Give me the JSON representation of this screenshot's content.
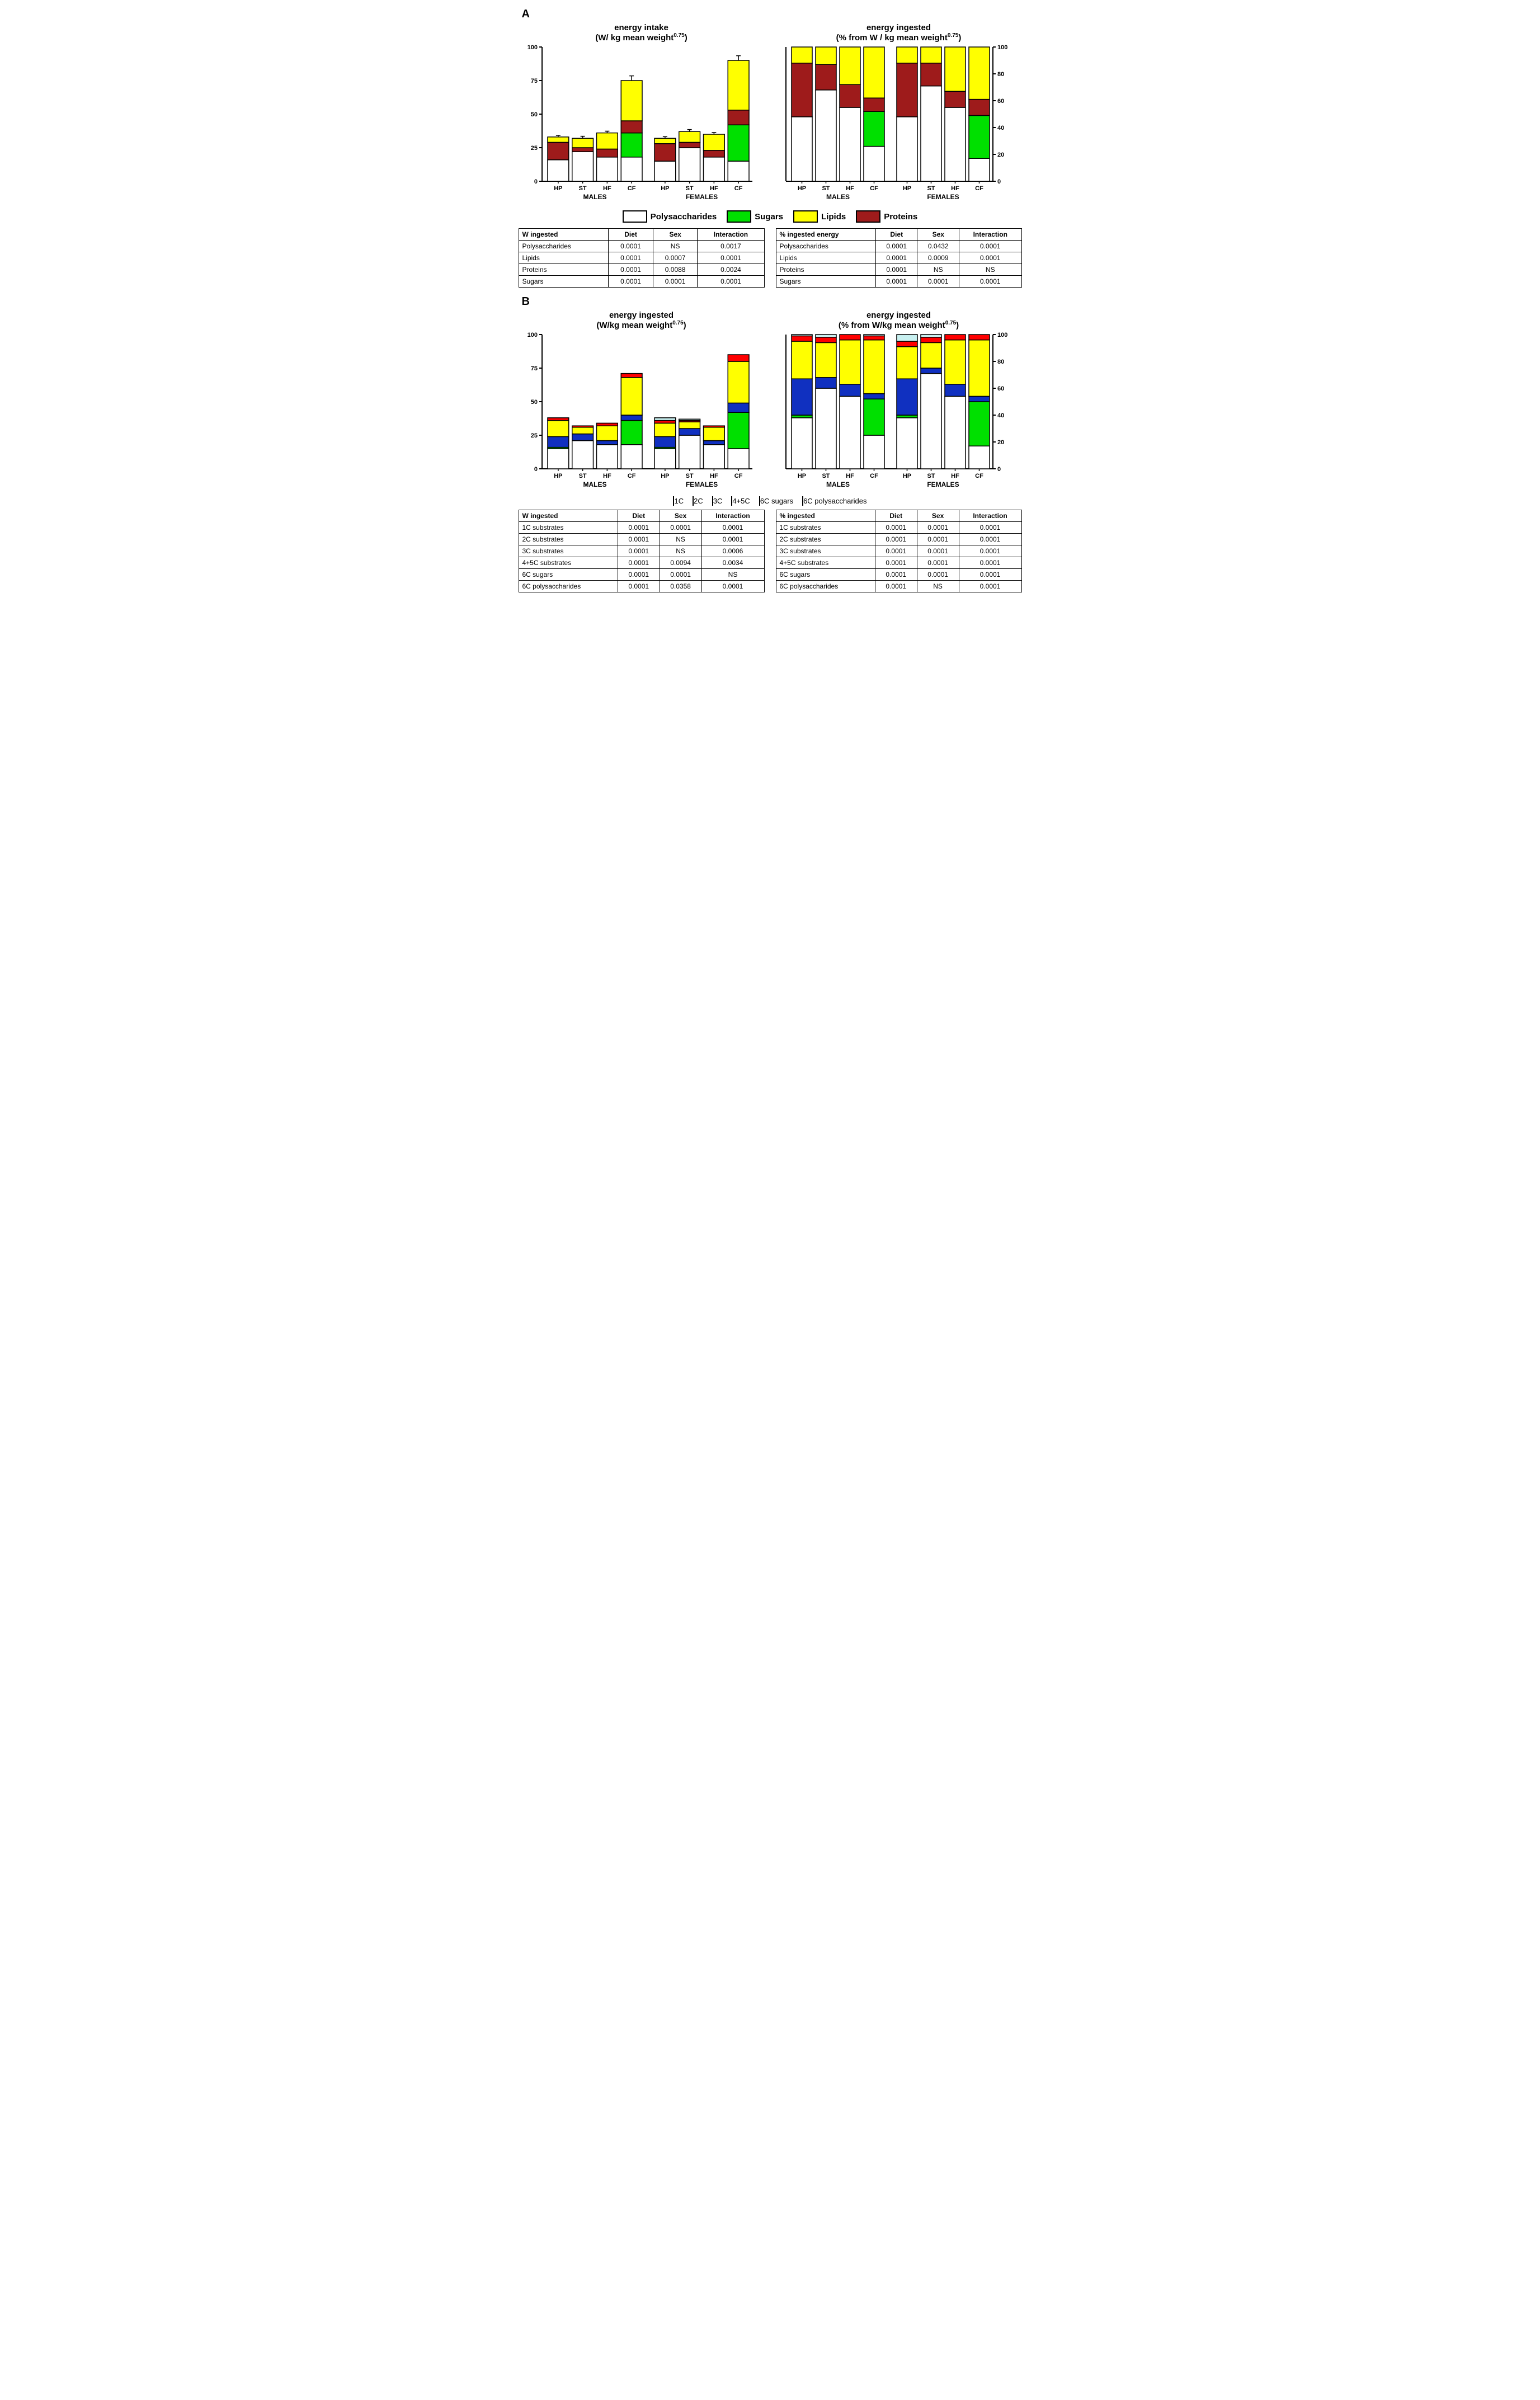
{
  "global": {
    "background_color": "#ffffff",
    "axis_color": "#000000",
    "font_family": "Arial"
  },
  "colors": {
    "polysaccharides": "#ffffff",
    "sugars": "#00e000",
    "lipids": "#ffff00",
    "proteins": "#9e1b1b",
    "c1": "#c8f0f0",
    "c2": "#ffff00",
    "c3": "#ff0000",
    "c45": "#1030c0",
    "c6sugars": "#00e000",
    "c6poly": "#ffffff"
  },
  "panelA": {
    "label": "A",
    "left": {
      "title_line1": "energy intake",
      "title_line2_prefix": "(W/ kg mean weight",
      "title_sup": "0.75",
      "title_line2_suffix": ")",
      "ylim": [
        0,
        100
      ],
      "yticks": [
        0,
        25,
        50,
        75,
        100
      ],
      "groups": [
        "MALES",
        "FEMALES"
      ],
      "categories": [
        "HP",
        "ST",
        "HF",
        "CF"
      ],
      "series_order": [
        "polysaccharides",
        "proteins",
        "lipids",
        "sugars_top"
      ],
      "bars": {
        "MALES": {
          "HP": {
            "poly": 16,
            "sugars": 0,
            "proteins": 13,
            "lipids": 4,
            "err": 1.2
          },
          "ST": {
            "poly": 22,
            "sugars": 0,
            "proteins": 3,
            "lipids": 7,
            "err": 1.5
          },
          "HF": {
            "poly": 18,
            "sugars": 0,
            "proteins": 6,
            "lipids": 12,
            "err": 1.3
          },
          "CF": {
            "poly": 18,
            "sugars": 18,
            "proteins": 9,
            "lipids": 30,
            "err": 3.5
          }
        },
        "FEMALES": {
          "HP": {
            "poly": 15,
            "sugars": 0,
            "proteins": 13,
            "lipids": 4,
            "err": 1.2
          },
          "ST": {
            "poly": 25,
            "sugars": 0,
            "proteins": 4,
            "lipids": 8,
            "err": 1.5
          },
          "HF": {
            "poly": 18,
            "sugars": 0,
            "proteins": 5,
            "lipids": 12,
            "err": 1.3
          },
          "CF": {
            "poly": 15,
            "sugars": 27,
            "proteins": 11,
            "lipids": 37,
            "err": 3.5
          }
        }
      }
    },
    "right": {
      "title_line1": "energy ingested",
      "title_line2_prefix": "(% from W / kg mean weight",
      "title_sup": "0.75",
      "title_line2_suffix": ")",
      "ylim": [
        0,
        100
      ],
      "yticks": [
        0,
        20,
        40,
        60,
        80,
        100
      ],
      "bars": {
        "MALES": {
          "HP": {
            "poly": 48,
            "sugars": 0,
            "proteins": 40,
            "lipids": 12
          },
          "ST": {
            "poly": 68,
            "sugars": 0,
            "proteins": 19,
            "lipids": 13
          },
          "HF": {
            "poly": 55,
            "sugars": 0,
            "proteins": 17,
            "lipids": 28
          },
          "CF": {
            "poly": 26,
            "sugars": 26,
            "proteins": 10,
            "lipids": 38
          }
        },
        "FEMALES": {
          "HP": {
            "poly": 48,
            "sugars": 0,
            "proteins": 40,
            "lipids": 12
          },
          "ST": {
            "poly": 71,
            "sugars": 0,
            "proteins": 17,
            "lipids": 12
          },
          "HF": {
            "poly": 55,
            "sugars": 0,
            "proteins": 12,
            "lipids": 33
          },
          "CF": {
            "poly": 17,
            "sugars": 32,
            "proteins": 12,
            "lipids": 39
          }
        }
      }
    },
    "legend": [
      {
        "key": "polysaccharides",
        "label": "Polysaccharides"
      },
      {
        "key": "sugars",
        "label": "Sugars"
      },
      {
        "key": "lipids",
        "label": "Lipids"
      },
      {
        "key": "proteins",
        "label": "Proteins"
      }
    ],
    "tableLeft": {
      "header": [
        "W ingested",
        "Diet",
        "Sex",
        "Interaction"
      ],
      "rows": [
        [
          "Polysaccharides",
          "0.0001",
          "NS",
          "0.0017"
        ],
        [
          "Lipids",
          "0.0001",
          "0.0007",
          "0.0001"
        ],
        [
          "Proteins",
          "0.0001",
          "0.0088",
          "0.0024"
        ],
        [
          "Sugars",
          "0.0001",
          "0.0001",
          "0.0001"
        ]
      ]
    },
    "tableRight": {
      "header": [
        "% ingested energy",
        "Diet",
        "Sex",
        "Interaction"
      ],
      "rows": [
        [
          "Polysaccharides",
          "0.0001",
          "0.0432",
          "0.0001"
        ],
        [
          "Lipids",
          "0.0001",
          "0.0009",
          "0.0001"
        ],
        [
          "Proteins",
          "0.0001",
          "NS",
          "NS"
        ],
        [
          "Sugars",
          "0.0001",
          "0.0001",
          "0.0001"
        ]
      ]
    }
  },
  "panelB": {
    "label": "B",
    "left": {
      "title_line1": "energy ingested",
      "title_line2_prefix": "(W/kg mean weight",
      "title_sup": "0.75",
      "title_line2_suffix": ")",
      "ylim": [
        0,
        100
      ],
      "yticks": [
        0,
        25,
        50,
        75,
        100
      ],
      "bars": {
        "MALES": {
          "HP": {
            "c6poly": 15,
            "c6sugars": 1,
            "c45": 8,
            "c2": 12,
            "c3": 2,
            "c1": 0
          },
          "ST": {
            "c6poly": 21,
            "c6sugars": 0,
            "c45": 5,
            "c2": 5,
            "c3": 1,
            "c1": 0
          },
          "HF": {
            "c6poly": 18,
            "c6sugars": 0,
            "c45": 3,
            "c2": 11,
            "c3": 2,
            "c1": 0
          },
          "CF": {
            "c6poly": 18,
            "c6sugars": 18,
            "c45": 4,
            "c2": 28,
            "c3": 3,
            "c1": 0
          }
        },
        "FEMALES": {
          "HP": {
            "c6poly": 15,
            "c6sugars": 1,
            "c45": 8,
            "c2": 10,
            "c3": 2,
            "c1": 2
          },
          "ST": {
            "c6poly": 25,
            "c6sugars": 0,
            "c45": 5,
            "c2": 5,
            "c3": 1,
            "c1": 1
          },
          "HF": {
            "c6poly": 18,
            "c6sugars": 0,
            "c45": 3,
            "c2": 10,
            "c3": 1,
            "c1": 0
          },
          "CF": {
            "c6poly": 15,
            "c6sugars": 27,
            "c45": 7,
            "c2": 31,
            "c3": 5,
            "c1": 0
          }
        }
      }
    },
    "right": {
      "title_line1": "energy ingested",
      "title_line2_prefix": "(% from W/kg mean weight",
      "title_sup": "0.75",
      "title_line2_suffix": ")",
      "ylim": [
        0,
        100
      ],
      "yticks": [
        0,
        20,
        40,
        60,
        80,
        100
      ],
      "bars": {
        "MALES": {
          "HP": {
            "c6poly": 38,
            "c6sugars": 2,
            "c45": 27,
            "c2": 28,
            "c3": 4,
            "c1": 1
          },
          "ST": {
            "c6poly": 60,
            "c6sugars": 0,
            "c45": 8,
            "c2": 26,
            "c3": 4,
            "c1": 2
          },
          "HF": {
            "c6poly": 54,
            "c6sugars": 0,
            "c45": 9,
            "c2": 33,
            "c3": 4,
            "c1": 0
          },
          "CF": {
            "c6poly": 25,
            "c6sugars": 27,
            "c45": 4,
            "c2": 40,
            "c3": 3,
            "c1": 1
          }
        },
        "FEMALES": {
          "HP": {
            "c6poly": 38,
            "c6sugars": 2,
            "c45": 27,
            "c2": 24,
            "c3": 4,
            "c1": 5
          },
          "ST": {
            "c6poly": 71,
            "c6sugars": 0,
            "c45": 4,
            "c2": 19,
            "c3": 4,
            "c1": 2
          },
          "HF": {
            "c6poly": 54,
            "c6sugars": 0,
            "c45": 9,
            "c2": 33,
            "c3": 4,
            "c1": 0
          },
          "CF": {
            "c6poly": 17,
            "c6sugars": 33,
            "c45": 4,
            "c2": 42,
            "c3": 4,
            "c1": 0
          }
        }
      }
    },
    "legend": [
      {
        "key": "c1",
        "label": "1C"
      },
      {
        "key": "c2",
        "label": "2C"
      },
      {
        "key": "c3",
        "label": "3C"
      },
      {
        "key": "c45",
        "label": "4+5C"
      },
      {
        "key": "c6sugars",
        "label": "6C sugars"
      },
      {
        "key": "c6poly",
        "label": "6C polysaccharides"
      }
    ],
    "tableLeft": {
      "header": [
        "W ingested",
        "Diet",
        "Sex",
        "Interaction"
      ],
      "rows": [
        [
          "1C substrates",
          "0.0001",
          "0.0001",
          "0.0001"
        ],
        [
          "2C substrates",
          "0.0001",
          "NS",
          "0.0001"
        ],
        [
          "3C substrates",
          "0.0001",
          "NS",
          "0.0006"
        ],
        [
          "4+5C substrates",
          "0.0001",
          "0.0094",
          "0.0034"
        ],
        [
          "6C sugars",
          "0.0001",
          "0.0001",
          "NS"
        ],
        [
          "6C polysaccharides",
          "0.0001",
          "0.0358",
          "0.0001"
        ]
      ]
    },
    "tableRight": {
      "header": [
        "% ingested",
        "Diet",
        "Sex",
        "Interaction"
      ],
      "rows": [
        [
          "1C substrates",
          "0.0001",
          "0.0001",
          "0.0001"
        ],
        [
          "2C substrates",
          "0.0001",
          "0.0001",
          "0.0001"
        ],
        [
          "3C substrates",
          "0.0001",
          "0.0001",
          "0.0001"
        ],
        [
          "4+5C substrates",
          "0.0001",
          "0.0001",
          "0.0001"
        ],
        [
          "6C sugars",
          "0.0001",
          "0.0001",
          "0.0001"
        ],
        [
          "6C polysaccharides",
          "0.0001",
          "NS",
          "0.0001"
        ]
      ]
    }
  }
}
